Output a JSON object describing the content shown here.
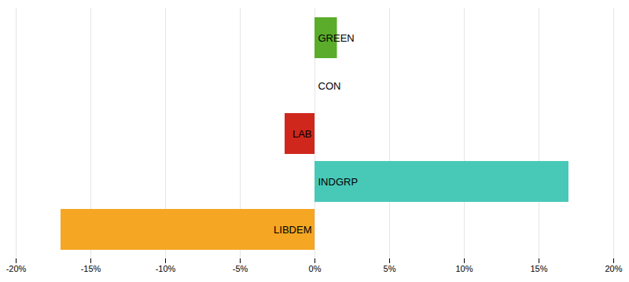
{
  "chart_data": {
    "type": "bar",
    "orientation": "horizontal",
    "categories": [
      "GREEN",
      "CON",
      "LAB",
      "INDGRP",
      "LIBDEM"
    ],
    "values": [
      1.5,
      0.0,
      -2.0,
      17.0,
      -17.0
    ],
    "colors": [
      "#5aac2a",
      "#ffffff",
      "#d0271d",
      "#48c9b8",
      "#f5a623"
    ],
    "xlim": [
      -20,
      20
    ],
    "xticks": [
      {
        "value": -20,
        "label": "-20%"
      },
      {
        "value": -15,
        "label": "-15%"
      },
      {
        "value": -10,
        "label": "-10%"
      },
      {
        "value": -5,
        "label": "-5%"
      },
      {
        "value": 0,
        "label": "0%"
      },
      {
        "value": 5,
        "label": "5%"
      },
      {
        "value": 10,
        "label": "10%"
      },
      {
        "value": 15,
        "label": "15%"
      },
      {
        "value": 20,
        "label": "20%"
      }
    ],
    "grid": true,
    "tick_labels": "x"
  }
}
